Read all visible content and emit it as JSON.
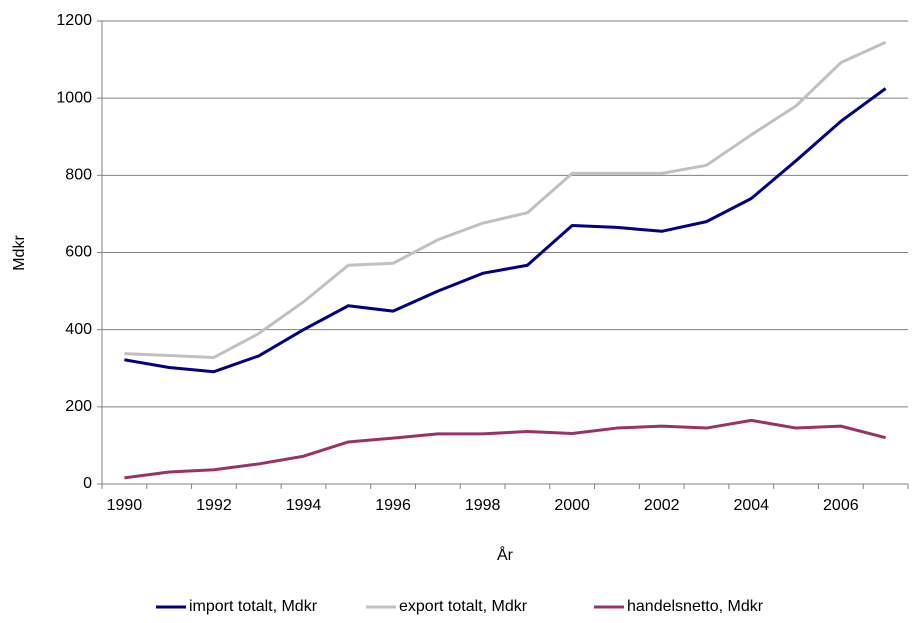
{
  "chart_data": {
    "type": "line",
    "y_label": "Mdkr",
    "x_label": "År",
    "categories": [
      "1990",
      null,
      "1992",
      null,
      "1994",
      null,
      "1996",
      null,
      "1998",
      null,
      "2000",
      null,
      "2002",
      null,
      "2004",
      null,
      "2006",
      null
    ],
    "series": [
      {
        "name": "import totalt, Mdkr",
        "color": "#000080",
        "values": [
          322,
          302,
          291,
          332,
          400,
          462,
          448,
          500,
          546,
          567,
          670,
          665,
          655,
          680,
          740,
          838,
          940,
          1025
        ]
      },
      {
        "name": "export totalt, Mdkr",
        "color": "#c0c0c0",
        "values": [
          338,
          333,
          328,
          390,
          472,
          567,
          572,
          633,
          676,
          703,
          805,
          805,
          805,
          826,
          905,
          980,
          1092,
          1145
        ]
      },
      {
        "name": "handelsnetto, Mdkr",
        "color": "#993366",
        "values": [
          16,
          31,
          37,
          52,
          72,
          109,
          119,
          130,
          130,
          136,
          131,
          145,
          150,
          145,
          165,
          145,
          150,
          120
        ]
      }
    ],
    "ylim": [
      0,
      1200
    ],
    "yticks": [
      0,
      200,
      400,
      600,
      800,
      1000,
      1200
    ],
    "grid": true,
    "legend": "bottom"
  }
}
